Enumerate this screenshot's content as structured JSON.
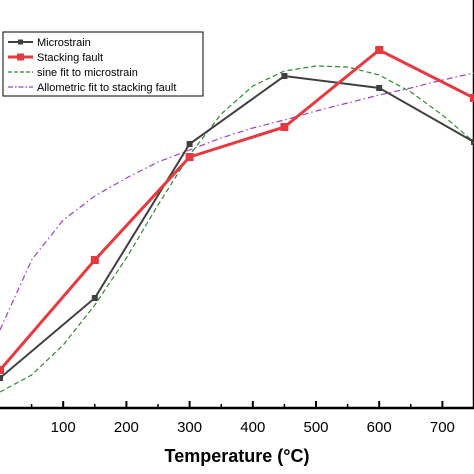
{
  "chart_data": {
    "type": "line",
    "xlabel": "Temperature (°C)",
    "ylabel": "",
    "xlim": [
      0,
      750
    ],
    "x_ticks": [
      100,
      200,
      300,
      400,
      500,
      600,
      700
    ],
    "grid": false,
    "legend_placement": "top-left",
    "series": [
      {
        "name": "Microstrain",
        "style": "line-square",
        "color": "#404040",
        "points": [
          [
            0,
            378
          ],
          [
            150,
            298
          ],
          [
            300,
            144
          ],
          [
            450,
            76
          ],
          [
            600,
            88
          ],
          [
            750,
            142
          ]
        ]
      },
      {
        "name": "Stacking fault",
        "style": "line-square",
        "color": "#e8383d",
        "points": [
          [
            0,
            370
          ],
          [
            150,
            260
          ],
          [
            300,
            157
          ],
          [
            450,
            127
          ],
          [
            600,
            50
          ],
          [
            750,
            98
          ]
        ]
      },
      {
        "name": "sine fit to microstrain",
        "style": "dash",
        "color": "#2e8b2e",
        "points": [
          [
            0,
            392
          ],
          [
            50,
            375
          ],
          [
            100,
            345
          ],
          [
            150,
            305
          ],
          [
            200,
            258
          ],
          [
            250,
            205
          ],
          [
            300,
            155
          ],
          [
            350,
            114
          ],
          [
            400,
            86
          ],
          [
            450,
            71
          ],
          [
            500,
            66
          ],
          [
            550,
            67
          ],
          [
            600,
            75
          ],
          [
            650,
            92
          ],
          [
            700,
            115
          ],
          [
            750,
            142
          ]
        ]
      },
      {
        "name": "Allometric fit to stacking fault",
        "style": "dashdot",
        "color": "#9a3fd0",
        "points": [
          [
            0,
            330
          ],
          [
            50,
            260
          ],
          [
            100,
            220
          ],
          [
            150,
            196
          ],
          [
            200,
            178
          ],
          [
            250,
            162
          ],
          [
            300,
            150
          ],
          [
            350,
            138
          ],
          [
            400,
            128
          ],
          [
            450,
            120
          ],
          [
            500,
            111
          ],
          [
            550,
            103
          ],
          [
            600,
            95
          ],
          [
            650,
            88
          ],
          [
            700,
            80
          ],
          [
            750,
            73
          ]
        ]
      }
    ]
  }
}
